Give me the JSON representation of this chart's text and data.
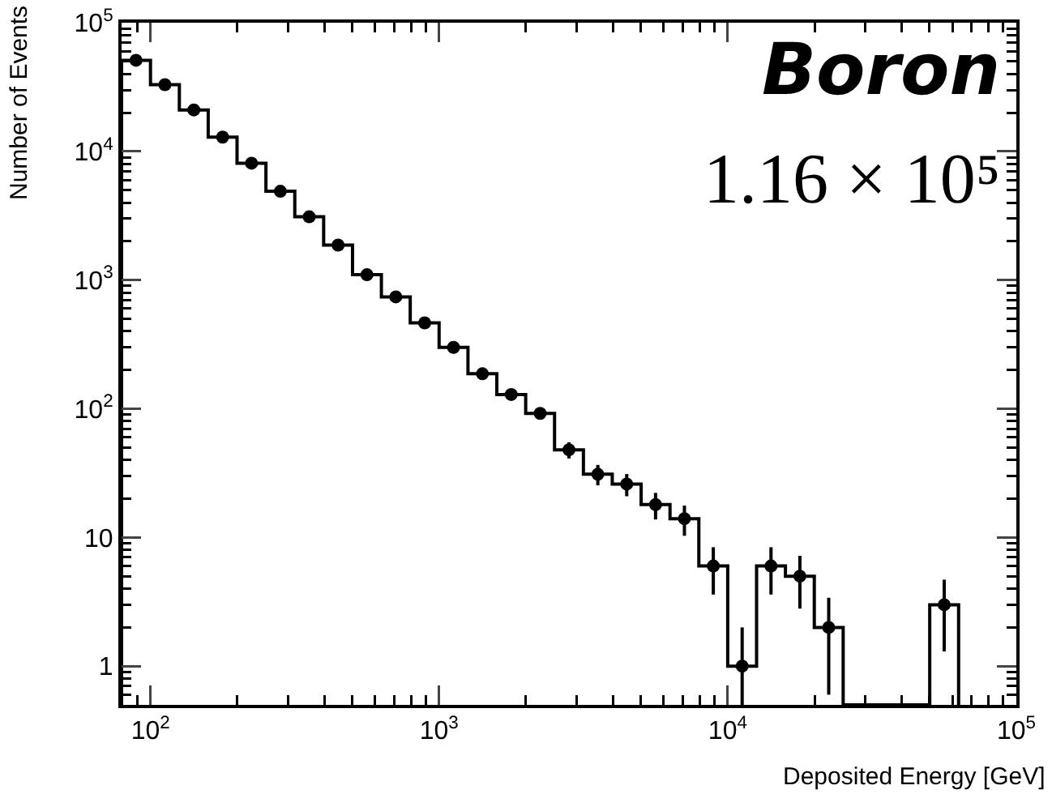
{
  "chart_data": {
    "type": "histogram",
    "xlabel": "Deposited Energy [GeV]",
    "ylabel": "Number of Events",
    "annotations": [
      "Boron",
      "1.16 × 10⁵"
    ],
    "bins": [
      79.4,
      100,
      125.9,
      158.5,
      199.5,
      251.2,
      316.2,
      398.1,
      501.2,
      631.0,
      794.3,
      1000,
      1258.9,
      1584.9,
      1995.3,
      2511.9,
      3162.3,
      3981.1,
      5011.9,
      6309.6,
      7943.3,
      10000,
      12589,
      15849,
      19953,
      25119,
      31623,
      39811,
      50119,
      63096
    ],
    "series": [
      {
        "color": "#000000",
        "values": [
          51000,
          33000,
          21000,
          12900,
          8100,
          4900,
          3100,
          1870,
          1100,
          740,
          465,
          300,
          187,
          129,
          92,
          48,
          31,
          26,
          18,
          14,
          6,
          1,
          6,
          5,
          2,
          null,
          null,
          null,
          3
        ]
      },
      {
        "type": "scatter",
        "color": "#000000",
        "x": [
          89.1,
          112.2,
          141.3,
          177.8,
          223.9,
          281.8,
          354.8,
          446.7,
          562.3,
          707.9,
          891.3,
          1122,
          1413,
          1778,
          2239,
          2818,
          3548,
          4467,
          5623,
          7079,
          8913,
          11220,
          14125,
          17783,
          22387,
          28184,
          35481,
          44668,
          56234
        ],
        "values": [
          51000,
          33000,
          21000,
          12900,
          8100,
          4900,
          3100,
          1870,
          1100,
          740,
          465,
          300,
          187,
          129,
          92,
          48,
          31,
          26,
          18,
          14,
          6,
          1,
          6,
          5,
          2,
          null,
          null,
          null,
          3
        ],
        "errors": [
          null,
          null,
          null,
          null,
          null,
          null,
          null,
          null,
          null,
          null,
          null,
          null,
          null,
          null,
          null,
          6.9,
          5.6,
          5.1,
          4.2,
          3.7,
          2.4,
          [
            0.5,
            2
          ],
          2.4,
          2.2,
          1.4,
          null,
          null,
          null,
          1.7
        ]
      }
    ],
    "marker": "circle",
    "log": "xy",
    "grid": false,
    "xlim": [
      79.4,
      100000
    ],
    "xticks": [
      {
        "value": 100,
        "label": "10$^{2}$"
      },
      {
        "value": 1000,
        "label": "10$^{3}$"
      },
      {
        "value": 10000,
        "label": "10$^{4}$"
      },
      {
        "value": 100000,
        "label": "10$^{5}$"
      }
    ],
    "ylim": [
      0.5,
      100000
    ],
    "yticks": [
      1,
      10,
      {
        "value": 100,
        "label": "10$^{2}$"
      },
      {
        "value": 1000,
        "label": "10$^{3}$"
      },
      {
        "value": 10000,
        "label": "10$^{4}$"
      },
      {
        "value": 100000,
        "label": "10$^{5}$"
      }
    ]
  }
}
